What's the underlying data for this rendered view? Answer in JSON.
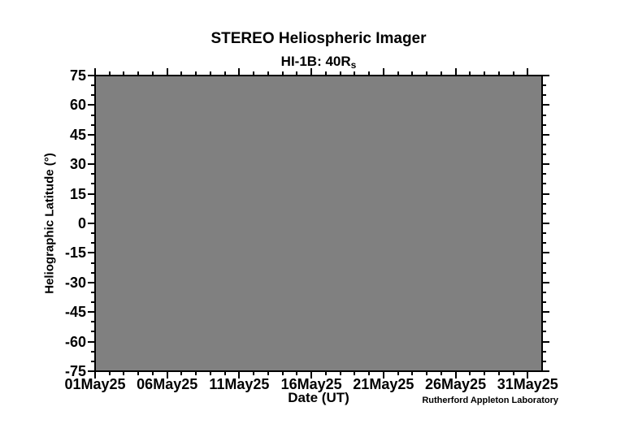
{
  "chart_data": {
    "type": "heatmap",
    "title": "STEREO Heliospheric Imager",
    "subtitle_main": "HI-1B: 40R",
    "subtitle_sub": "s",
    "xlabel": "Date (UT)",
    "ylabel": "Heliographic Latitude (°)",
    "credit": "Rutherford Appleton Laboratory",
    "plot_fill_color": "#808080",
    "axis_color": "#000000",
    "background_color": "#ffffff",
    "ylim": [
      -75,
      75
    ],
    "y_major_step": 15,
    "y_minor_step": 5,
    "x_span_days": 31,
    "x_minor_step_days": 1,
    "x_major_ticks": [
      {
        "day": 1,
        "label": "01May25"
      },
      {
        "day": 6,
        "label": "06May25"
      },
      {
        "day": 11,
        "label": "11May25"
      },
      {
        "day": 16,
        "label": "16May25"
      },
      {
        "day": 21,
        "label": "21May25"
      },
      {
        "day": 26,
        "label": "26May25"
      },
      {
        "day": 31,
        "label": "31May25"
      }
    ],
    "y_major_ticks": [
      {
        "value": 75,
        "label": "75"
      },
      {
        "value": 60,
        "label": "60"
      },
      {
        "value": 45,
        "label": "45"
      },
      {
        "value": 30,
        "label": "30"
      },
      {
        "value": 15,
        "label": "15"
      },
      {
        "value": 0,
        "label": "0"
      },
      {
        "value": -15,
        "label": "-15"
      },
      {
        "value": -30,
        "label": "-30"
      },
      {
        "value": -45,
        "label": "-45"
      },
      {
        "value": -60,
        "label": "-60"
      },
      {
        "value": -75,
        "label": "-75"
      }
    ],
    "series": [],
    "grid": false,
    "legend": false
  }
}
